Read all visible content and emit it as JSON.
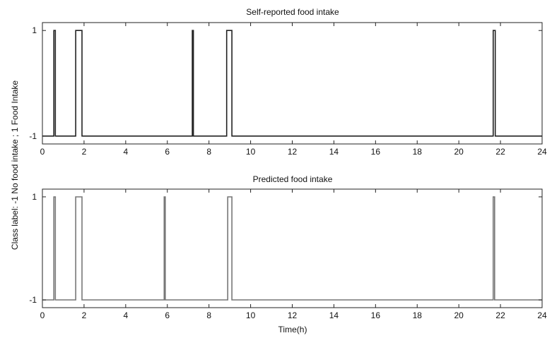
{
  "shared": {
    "xlabel": "Time(h)",
    "ylabel": "Class label: -1 No food intake ; 1 Food Intake"
  },
  "chart_data": [
    {
      "type": "line",
      "title": "Self-reported food intake",
      "xlim": [
        0,
        24
      ],
      "ylim": [
        -1.15,
        1.15
      ],
      "xticks": [
        "0",
        "2",
        "4",
        "6",
        "8",
        "10",
        "12",
        "14",
        "16",
        "18",
        "20",
        "22",
        "24"
      ],
      "yticks": [
        "-1",
        "1"
      ],
      "color": "#222222",
      "grid": false,
      "pulses": [
        {
          "start": 0.55,
          "end": 0.62
        },
        {
          "start": 1.6,
          "end": 1.9
        },
        {
          "start": 7.2,
          "end": 7.25
        },
        {
          "start": 8.85,
          "end": 9.1
        },
        {
          "start": 21.65,
          "end": 21.75
        }
      ]
    },
    {
      "type": "line",
      "title": "Predicted food intake",
      "xlim": [
        0,
        24
      ],
      "ylim": [
        -1.15,
        1.15
      ],
      "xticks": [
        "0",
        "2",
        "4",
        "6",
        "8",
        "10",
        "12",
        "14",
        "16",
        "18",
        "20",
        "22",
        "24"
      ],
      "yticks": [
        "-1",
        "1"
      ],
      "color": "#777777",
      "grid": false,
      "pulses": [
        {
          "start": 0.55,
          "end": 0.62
        },
        {
          "start": 1.6,
          "end": 1.9
        },
        {
          "start": 5.85,
          "end": 5.9
        },
        {
          "start": 8.9,
          "end": 9.1
        },
        {
          "start": 21.65,
          "end": 21.72
        }
      ]
    }
  ]
}
